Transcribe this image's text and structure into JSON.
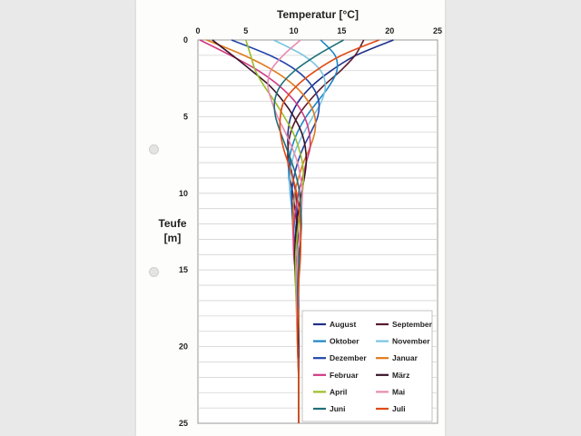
{
  "chart_data": {
    "type": "line",
    "title": "",
    "xlabel": "Temperatur [°C]",
    "ylabel": "Teufe [m]",
    "xlim": [
      0,
      25
    ],
    "ylim": [
      0,
      25
    ],
    "y_inverted": true,
    "x_axis_position": "top",
    "x_ticks": [
      "0",
      "5",
      "10",
      "15",
      "20",
      "25"
    ],
    "y_ticks": [
      "0",
      "5",
      "10",
      "15",
      "20",
      "25"
    ],
    "grid": "horizontal",
    "legend_position": "bottom-right",
    "depths": [
      0,
      1,
      2,
      3,
      4,
      5,
      6,
      7,
      8,
      9,
      10,
      12,
      14,
      16,
      18,
      20,
      22,
      25
    ],
    "series": [
      {
        "name": "August",
        "color": "#1f2f8a",
        "values": [
          20.4,
          16.5,
          13.9,
          11.9,
          10.5,
          9.7,
          9.4,
          9.4,
          9.6,
          9.9,
          10.2,
          10.4,
          10.5,
          10.5,
          10.5,
          10.5,
          10.5,
          10.5
        ]
      },
      {
        "name": "September",
        "color": "#5a1a2c",
        "values": [
          17.3,
          16.4,
          14.9,
          13.1,
          11.6,
          10.4,
          9.7,
          9.4,
          9.4,
          9.6,
          9.9,
          10.3,
          10.5,
          10.5,
          10.5,
          10.5,
          10.5,
          10.5
        ]
      },
      {
        "name": "Oktober",
        "color": "#1b86c6",
        "values": [
          12.8,
          14.3,
          14.5,
          13.7,
          12.5,
          11.3,
          10.4,
          9.8,
          9.5,
          9.5,
          9.7,
          10.1,
          10.4,
          10.5,
          10.5,
          10.5,
          10.5,
          10.5
        ]
      },
      {
        "name": "November",
        "color": "#7cc4e0",
        "values": [
          7.9,
          11.0,
          12.8,
          13.3,
          12.9,
          12.0,
          11.1,
          10.3,
          9.8,
          9.6,
          9.6,
          10.0,
          10.3,
          10.5,
          10.5,
          10.5,
          10.5,
          10.5
        ]
      },
      {
        "name": "Dezember",
        "color": "#2346a8",
        "values": [
          3.5,
          7.5,
          10.3,
          11.9,
          12.6,
          12.5,
          11.8,
          11.0,
          10.4,
          10.0,
          9.8,
          9.9,
          10.2,
          10.4,
          10.5,
          10.5,
          10.5,
          10.5
        ]
      },
      {
        "name": "Januar",
        "color": "#e07a1c",
        "values": [
          0.9,
          4.8,
          7.9,
          10.1,
          11.5,
          12.2,
          12.2,
          11.7,
          11.0,
          10.5,
          10.1,
          9.9,
          10.1,
          10.3,
          10.5,
          10.5,
          10.5,
          10.5
        ]
      },
      {
        "name": "Februar",
        "color": "#d03a82",
        "values": [
          0.2,
          3.4,
          6.3,
          8.5,
          10.1,
          11.1,
          11.6,
          11.7,
          11.3,
          10.9,
          10.5,
          10.0,
          10.0,
          10.3,
          10.4,
          10.5,
          10.5,
          10.5
        ]
      },
      {
        "name": "März",
        "color": "#3a1428",
        "values": [
          1.5,
          3.6,
          5.6,
          7.5,
          8.9,
          10.0,
          10.8,
          11.2,
          11.3,
          11.1,
          10.8,
          10.3,
          10.1,
          10.2,
          10.4,
          10.5,
          10.5,
          10.5
        ]
      },
      {
        "name": "April",
        "color": "#9bbd2a",
        "values": [
          5.0,
          5.5,
          6.0,
          6.9,
          8.0,
          9.0,
          9.9,
          10.5,
          10.9,
          11.0,
          10.9,
          10.5,
          10.2,
          10.2,
          10.3,
          10.4,
          10.5,
          10.5
        ]
      },
      {
        "name": "Mai",
        "color": "#e88ab0",
        "values": [
          10.7,
          8.9,
          7.6,
          7.3,
          7.7,
          8.3,
          9.1,
          9.8,
          10.4,
          10.7,
          10.9,
          10.7,
          10.4,
          10.3,
          10.3,
          10.4,
          10.5,
          10.5
        ]
      },
      {
        "name": "Juni",
        "color": "#1f6f7a",
        "values": [
          15.2,
          12.4,
          10.1,
          8.6,
          8.0,
          8.1,
          8.6,
          9.2,
          9.8,
          10.3,
          10.6,
          10.8,
          10.6,
          10.4,
          10.4,
          10.4,
          10.5,
          10.5
        ]
      },
      {
        "name": "Juli",
        "color": "#e04a14",
        "values": [
          18.9,
          15.0,
          12.3,
          10.3,
          9.0,
          8.6,
          8.6,
          8.9,
          9.4,
          9.9,
          10.3,
          10.7,
          10.7,
          10.5,
          10.4,
          10.4,
          10.5,
          10.5
        ]
      }
    ]
  }
}
